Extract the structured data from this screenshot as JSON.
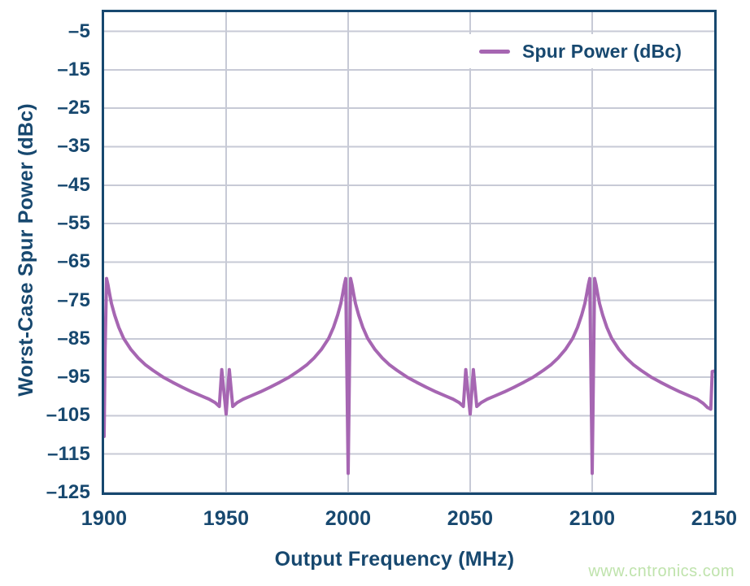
{
  "figure": {
    "watermark": "www.cntronics.com"
  },
  "colors": {
    "text_navy": "#17486F",
    "plot_border": "#17486F",
    "gridline": "#C7CAD6",
    "series_purple": "#A666B2",
    "watermark_green": "#BFE3AC",
    "background": "#FFFFFF"
  },
  "chart_data": {
    "type": "line",
    "title": "",
    "xlabel": "Output Frequency (MHz)",
    "ylabel": "Worst-Case Spur Power (dBc)",
    "xlim": [
      1900,
      2150
    ],
    "ylim": [
      -125,
      0
    ],
    "xticks": [
      1900,
      1950,
      2000,
      2050,
      2100,
      2150
    ],
    "yticks": [
      -5,
      -15,
      -25,
      -35,
      -45,
      -55,
      -65,
      -75,
      -85,
      -95,
      -105,
      -115,
      -125
    ],
    "grid": true,
    "legend": {
      "position": "top-right",
      "entries": [
        {
          "label": "Spur Power (dBc)",
          "color": "#A666B2"
        }
      ]
    },
    "series": [
      {
        "name": "Spur Power (dBc)",
        "color": "#A666B2",
        "points": [
          [
            1900.0,
            -110.4
          ],
          [
            1900.4,
            -88.0
          ],
          [
            1901.0,
            -69.3
          ],
          [
            1901.6,
            -71.0
          ],
          [
            1902.3,
            -73.5
          ],
          [
            1903.0,
            -75.8
          ],
          [
            1904.3,
            -78.8
          ],
          [
            1906.0,
            -82.0
          ],
          [
            1908.0,
            -84.9
          ],
          [
            1911.0,
            -87.8
          ],
          [
            1914.0,
            -90.0
          ],
          [
            1917.0,
            -91.8
          ],
          [
            1920.0,
            -93.2
          ],
          [
            1924.0,
            -94.9
          ],
          [
            1928.0,
            -96.3
          ],
          [
            1932.0,
            -97.6
          ],
          [
            1936.0,
            -98.8
          ],
          [
            1940.0,
            -99.9
          ],
          [
            1943.0,
            -100.7
          ],
          [
            1945.5,
            -101.6
          ],
          [
            1947.2,
            -102.6
          ],
          [
            1948.2,
            -93.0
          ],
          [
            1950.0,
            -104.6
          ],
          [
            1951.3,
            -93.0
          ],
          [
            1952.7,
            -102.6
          ],
          [
            1954.5,
            -101.6
          ],
          [
            1957.0,
            -100.7
          ],
          [
            1960.0,
            -99.9
          ],
          [
            1964.0,
            -98.8
          ],
          [
            1968.0,
            -97.6
          ],
          [
            1972.0,
            -96.3
          ],
          [
            1976.0,
            -94.9
          ],
          [
            1980.0,
            -93.2
          ],
          [
            1983.0,
            -91.8
          ],
          [
            1986.0,
            -90.0
          ],
          [
            1989.0,
            -87.8
          ],
          [
            1992.0,
            -84.9
          ],
          [
            1994.0,
            -82.0
          ],
          [
            1995.7,
            -78.8
          ],
          [
            1997.0,
            -75.8
          ],
          [
            1997.7,
            -73.5
          ],
          [
            1998.4,
            -71.0
          ],
          [
            1999.0,
            -69.3
          ],
          [
            2000.0,
            -120.0
          ],
          [
            2001.0,
            -69.3
          ],
          [
            2001.6,
            -71.0
          ],
          [
            2002.3,
            -73.5
          ],
          [
            2003.0,
            -75.8
          ],
          [
            2004.3,
            -78.8
          ],
          [
            2006.0,
            -82.0
          ],
          [
            2008.0,
            -84.9
          ],
          [
            2011.0,
            -87.8
          ],
          [
            2014.0,
            -90.0
          ],
          [
            2017.0,
            -91.8
          ],
          [
            2020.0,
            -93.2
          ],
          [
            2024.0,
            -94.9
          ],
          [
            2028.0,
            -96.3
          ],
          [
            2032.0,
            -97.6
          ],
          [
            2036.0,
            -98.8
          ],
          [
            2040.0,
            -99.9
          ],
          [
            2043.0,
            -100.7
          ],
          [
            2045.5,
            -101.6
          ],
          [
            2047.2,
            -102.6
          ],
          [
            2048.2,
            -93.0
          ],
          [
            2050.0,
            -104.6
          ],
          [
            2051.3,
            -93.0
          ],
          [
            2052.7,
            -102.6
          ],
          [
            2054.5,
            -101.6
          ],
          [
            2057.0,
            -100.7
          ],
          [
            2060.0,
            -99.9
          ],
          [
            2064.0,
            -98.8
          ],
          [
            2068.0,
            -97.6
          ],
          [
            2072.0,
            -96.3
          ],
          [
            2076.0,
            -94.9
          ],
          [
            2080.0,
            -93.2
          ],
          [
            2083.0,
            -91.8
          ],
          [
            2086.0,
            -90.0
          ],
          [
            2089.0,
            -87.8
          ],
          [
            2092.0,
            -84.9
          ],
          [
            2094.0,
            -82.0
          ],
          [
            2095.7,
            -78.8
          ],
          [
            2097.0,
            -75.8
          ],
          [
            2097.7,
            -73.5
          ],
          [
            2098.4,
            -71.0
          ],
          [
            2099.0,
            -69.3
          ],
          [
            2100.0,
            -120.0
          ],
          [
            2101.0,
            -69.3
          ],
          [
            2101.6,
            -71.0
          ],
          [
            2102.3,
            -73.5
          ],
          [
            2103.0,
            -75.8
          ],
          [
            2104.3,
            -78.8
          ],
          [
            2106.0,
            -82.0
          ],
          [
            2108.0,
            -84.9
          ],
          [
            2111.0,
            -87.8
          ],
          [
            2114.0,
            -90.0
          ],
          [
            2117.0,
            -91.8
          ],
          [
            2120.0,
            -93.2
          ],
          [
            2124.0,
            -94.9
          ],
          [
            2128.0,
            -96.3
          ],
          [
            2132.0,
            -97.6
          ],
          [
            2136.0,
            -98.8
          ],
          [
            2140.0,
            -99.9
          ],
          [
            2143.0,
            -100.7
          ],
          [
            2145.5,
            -101.8
          ],
          [
            2147.3,
            -102.9
          ],
          [
            2148.6,
            -103.3
          ],
          [
            2149.2,
            -93.5
          ],
          [
            2150.0,
            -93.4
          ]
        ]
      }
    ]
  }
}
